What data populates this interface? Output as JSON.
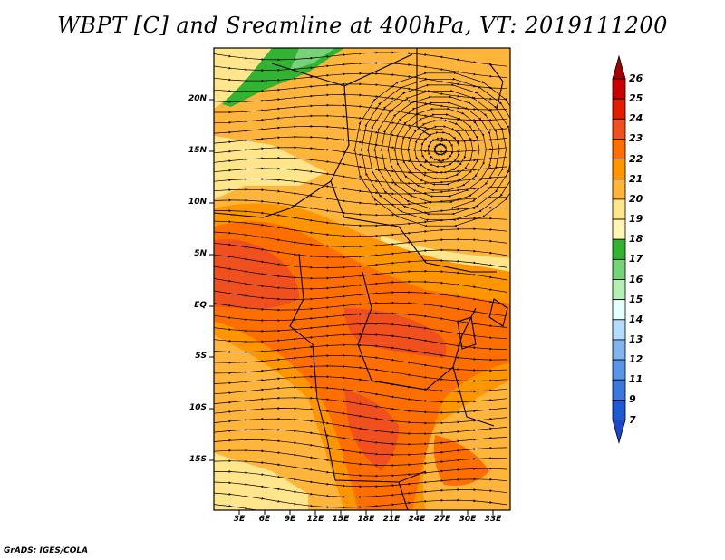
{
  "title": "WBPT [C] and Sreamline at 400hPa, VT: 2019111200",
  "footer": "GrADS: IGES/COLA",
  "map": {
    "lat_labels": [
      "20N",
      "15N",
      "10N",
      "5N",
      "EQ",
      "5S",
      "10S",
      "15S"
    ],
    "lon_labels": [
      "3E",
      "6E",
      "9E",
      "12E",
      "15E",
      "18E",
      "21E",
      "24E",
      "27E",
      "30E",
      "33E"
    ]
  },
  "colorbar": {
    "labels": [
      "26",
      "25",
      "24",
      "23",
      "22",
      "21",
      "20",
      "19",
      "18",
      "17",
      "16",
      "15",
      "14",
      "13",
      "12",
      "11",
      "9",
      "7"
    ],
    "colors": [
      "#a50000",
      "#c80000",
      "#e11e00",
      "#f0501e",
      "#ff6e00",
      "#ff9600",
      "#ffb43c",
      "#ffe68c",
      "#fff5b4",
      "#32b432",
      "#78d278",
      "#b4f0b4",
      "#e6ffff",
      "#b4dcff",
      "#82b4f0",
      "#5a96e6",
      "#3c78dc",
      "#1e5ad2",
      "#1e46c8"
    ]
  },
  "colors": {
    "field_low": "#ffe68c",
    "field_mid": "#ffb43c",
    "field_high": "#ff6e00",
    "field_peak": "#f0501e",
    "green": "#32b432"
  }
}
